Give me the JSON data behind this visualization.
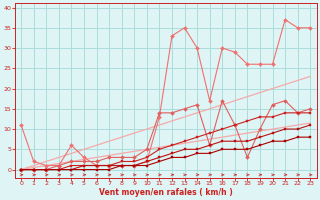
{
  "x": [
    0,
    1,
    2,
    3,
    4,
    5,
    6,
    7,
    8,
    9,
    10,
    11,
    12,
    13,
    14,
    15,
    16,
    17,
    18,
    19,
    20,
    21,
    22,
    23
  ],
  "line_lightpink1": [
    0,
    1,
    2,
    3,
    4,
    5,
    6,
    7,
    8,
    9,
    10,
    11,
    12,
    13,
    14,
    15,
    16,
    17,
    18,
    19,
    20,
    21,
    22,
    23
  ],
  "line_lightpink2": [
    0,
    0.5,
    1,
    1.5,
    2,
    2.5,
    3,
    3.5,
    4,
    4.5,
    5,
    5.5,
    6,
    6.5,
    7,
    7.5,
    8,
    8.5,
    9,
    9.5,
    10,
    10.5,
    11,
    11.5
  ],
  "line_pink_scattered": [
    11,
    2,
    1,
    1,
    6,
    3,
    1,
    1,
    1,
    1,
    2,
    13,
    33,
    35,
    30,
    17,
    30,
    29,
    26,
    26,
    26,
    37,
    35,
    35
  ],
  "line_pink2": [
    0,
    0,
    0,
    1,
    2,
    2,
    2,
    3,
    3,
    3,
    5,
    14,
    14,
    15,
    16,
    6,
    17,
    11,
    3,
    10,
    16,
    17,
    14,
    15
  ],
  "line_red1": [
    0,
    0,
    0,
    0,
    1,
    1,
    1,
    1,
    2,
    2,
    3,
    5,
    6,
    7,
    8,
    9,
    10,
    11,
    12,
    13,
    13,
    14,
    14,
    14
  ],
  "line_red2": [
    0,
    0,
    0,
    0,
    0,
    1,
    1,
    1,
    1,
    1,
    2,
    3,
    4,
    5,
    5,
    6,
    7,
    7,
    7,
    8,
    9,
    10,
    10,
    11
  ],
  "line_red3": [
    0,
    0,
    0,
    0,
    0,
    0,
    0,
    0,
    1,
    1,
    1,
    2,
    3,
    3,
    4,
    4,
    5,
    5,
    5,
    6,
    7,
    7,
    8,
    8
  ],
  "color_lightpink1": "#f4aaaa",
  "color_lightpink2": "#f4aaaa",
  "color_pink_scattered": "#f07070",
  "color_pink2": "#e06060",
  "color_red1": "#cc2020",
  "color_red2": "#bb1010",
  "color_red3": "#aa0000",
  "bg_color": "#dff4f4",
  "grid_color": "#aadddd",
  "tick_color": "#cc2020",
  "xlabel": "Vent moyen/en rafales ( km/h )",
  "xlabel_color": "#cc2020",
  "ylim": [
    -2,
    41
  ],
  "xlim": [
    -0.5,
    23.5
  ],
  "yticks": [
    0,
    5,
    10,
    15,
    20,
    25,
    30,
    35,
    40
  ],
  "xticks": [
    0,
    1,
    2,
    3,
    4,
    5,
    6,
    7,
    8,
    9,
    10,
    11,
    12,
    13,
    14,
    15,
    16,
    17,
    18,
    19,
    20,
    21,
    22,
    23
  ]
}
